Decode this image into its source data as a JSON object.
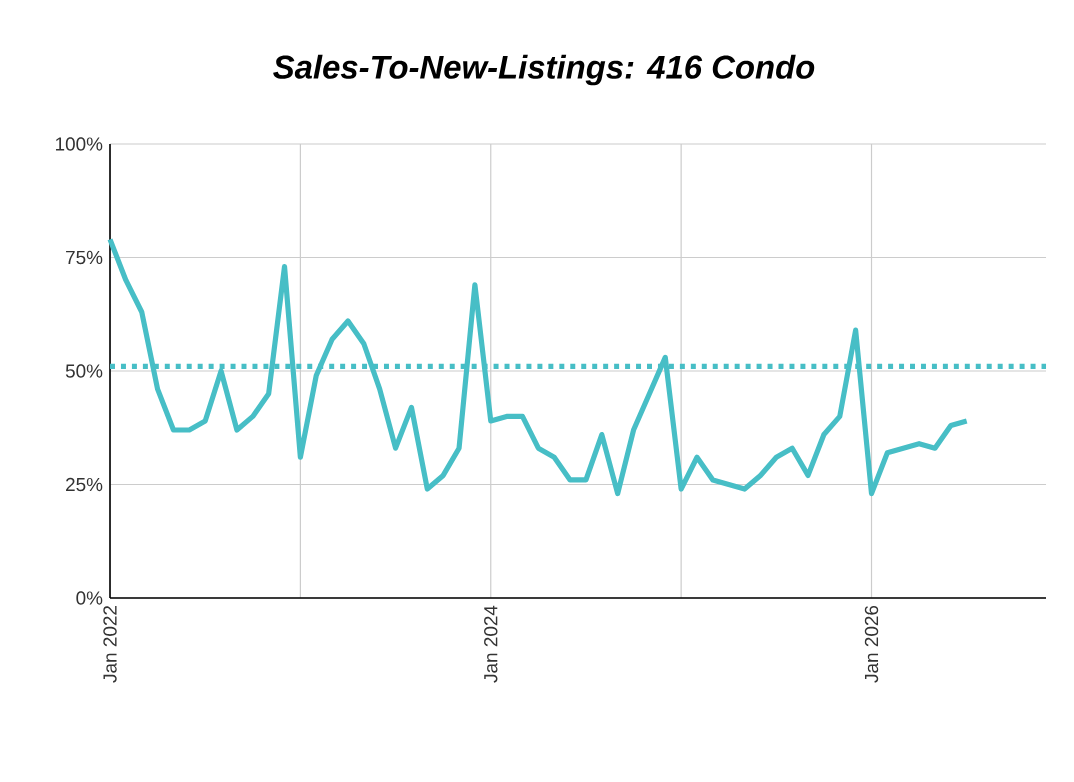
{
  "chart_data": {
    "type": "line",
    "title": "Sales-To-New-Listings: 416 Condo",
    "x": [
      "2022-01",
      "2022-02",
      "2022-03",
      "2022-04",
      "2022-05",
      "2022-06",
      "2022-07",
      "2022-08",
      "2022-09",
      "2022-10",
      "2022-11",
      "2022-12",
      "2023-01",
      "2023-02",
      "2023-03",
      "2023-04",
      "2023-05",
      "2023-06",
      "2023-07",
      "2023-08",
      "2023-09",
      "2023-10",
      "2023-11",
      "2023-12",
      "2024-01",
      "2024-02",
      "2024-03",
      "2024-04",
      "2024-05",
      "2024-06",
      "2024-07",
      "2024-08",
      "2024-09",
      "2024-10",
      "2024-11",
      "2024-12",
      "2025-01",
      "2025-02",
      "2025-03",
      "2025-04",
      "2025-05",
      "2025-06",
      "2025-07",
      "2025-08",
      "2025-09",
      "2025-10",
      "2025-11",
      "2025-12",
      "2026-01",
      "2026-02",
      "2026-03",
      "2026-04",
      "2026-05",
      "2026-06",
      "2026-07"
    ],
    "series": [
      {
        "color": "#47bec6",
        "values": [
          79,
          70,
          63,
          46,
          37,
          37,
          39,
          50,
          37,
          40,
          45,
          73,
          31,
          49,
          57,
          61,
          56,
          46,
          33,
          42,
          24,
          27,
          33,
          69,
          39,
          40,
          40,
          33,
          31,
          26,
          26,
          36,
          23,
          37,
          45,
          53,
          24,
          31,
          26,
          25,
          24,
          27,
          31,
          33,
          27,
          36,
          40,
          59,
          23,
          32,
          33,
          34,
          33,
          38,
          39
        ]
      }
    ],
    "xlim": [
      "2022-01",
      "2026-12"
    ],
    "xticks": [
      {
        "value": "2022-01",
        "label": "Jan 2022"
      },
      {
        "value": "2023-01",
        "label": null
      },
      {
        "value": "2024-01",
        "label": "Jan 2024"
      },
      {
        "value": "2025-01",
        "label": null
      },
      {
        "value": "2026-01",
        "label": "Jan 2026"
      }
    ],
    "ylim": [
      0,
      100
    ],
    "yticks": [
      {
        "value": 0,
        "label": "0%"
      },
      {
        "value": 25,
        "label": "25%"
      },
      {
        "value": 50,
        "label": "50%"
      },
      {
        "value": 75,
        "label": "75%"
      },
      {
        "value": 100,
        "label": "100%"
      }
    ],
    "ref_lines": [
      {
        "axis": "y",
        "value": 51,
        "color": "#47bec6",
        "line_style": "dotted"
      }
    ],
    "grid": true
  }
}
